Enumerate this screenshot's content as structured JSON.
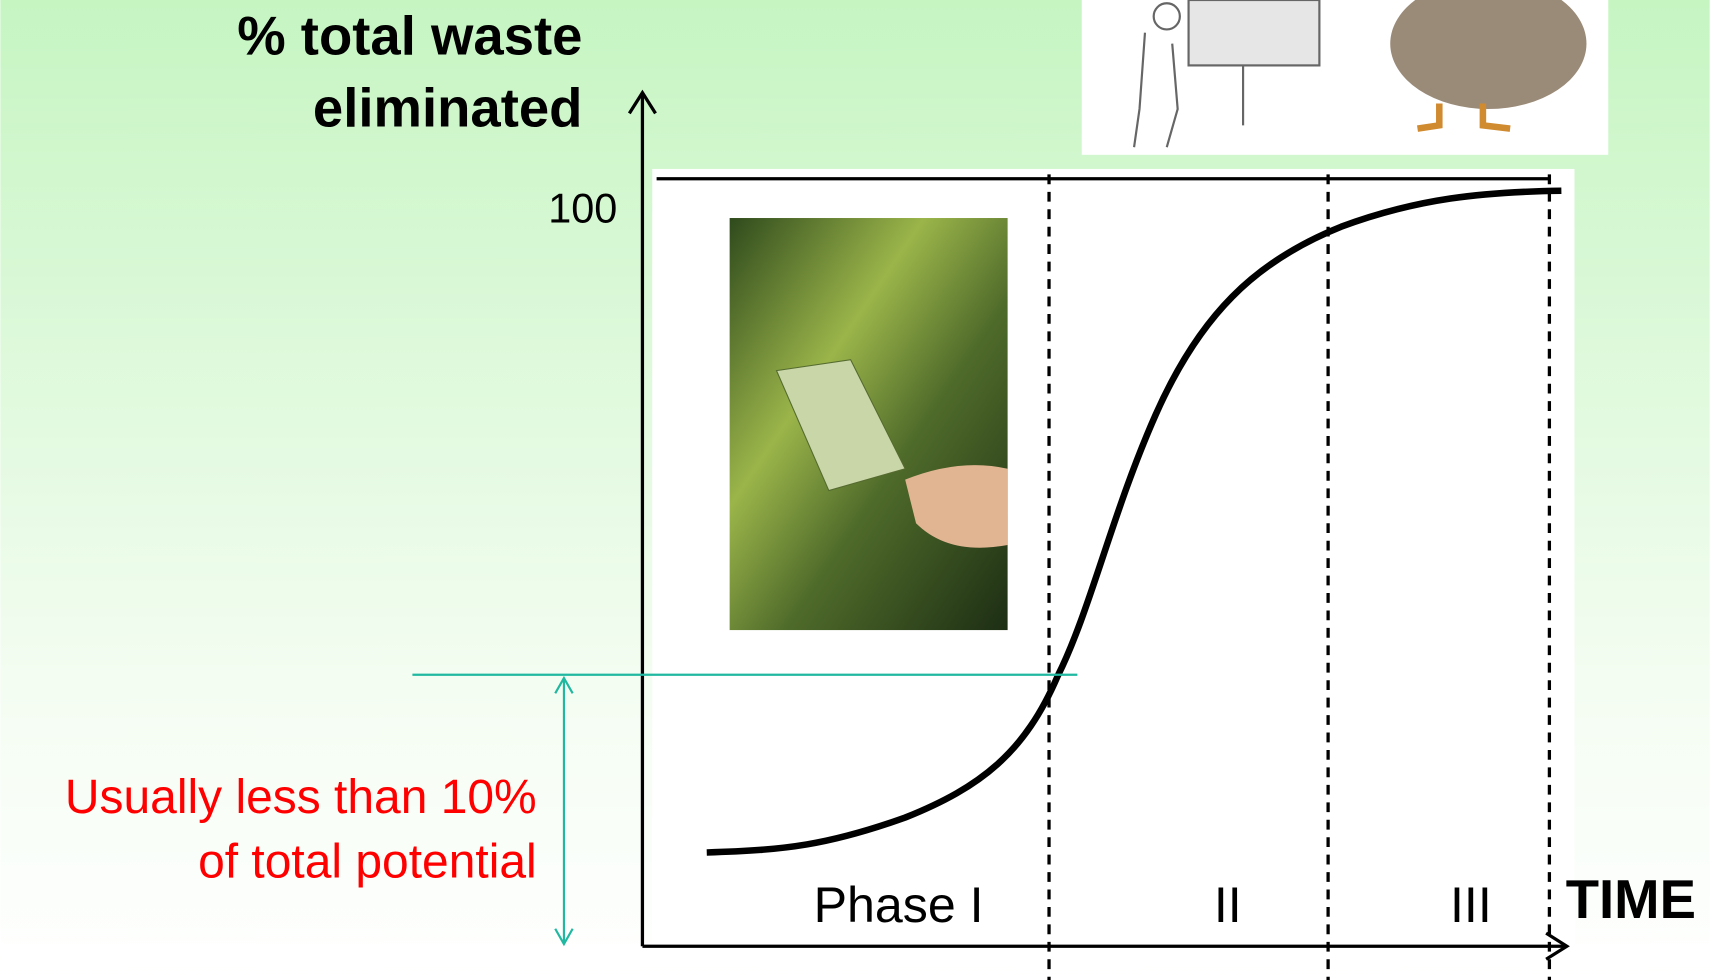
{
  "y_axis_label": [
    "% total waste",
    "eliminated"
  ],
  "y_tick": "100",
  "annotation": [
    "Usually less than 10%",
    "of total potential"
  ],
  "phases": [
    "Phase I",
    "II",
    "III"
  ],
  "x_axis_label": "TIME"
}
